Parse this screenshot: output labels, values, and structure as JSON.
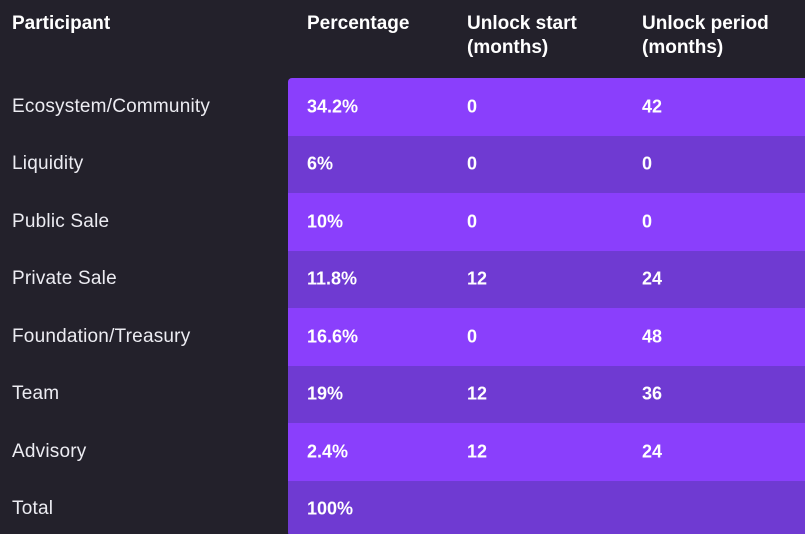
{
  "table": {
    "headers": {
      "participant": "Participant",
      "percentage": "Percentage",
      "unlock_start": "Unlock start\n(months)",
      "unlock_period": "Unlock period\n(months)"
    },
    "rows": [
      {
        "participant": "Ecosystem/Community",
        "percentage": "34.2%",
        "unlock_start": "0",
        "unlock_period": "42"
      },
      {
        "participant": "Liquidity",
        "percentage": "6%",
        "unlock_start": "0",
        "unlock_period": "0"
      },
      {
        "participant": "Public Sale",
        "percentage": "10%",
        "unlock_start": "0",
        "unlock_period": "0"
      },
      {
        "participant": "Private Sale",
        "percentage": "11.8%",
        "unlock_start": "12",
        "unlock_period": "24"
      },
      {
        "participant": "Foundation/Treasury",
        "percentage": "16.6%",
        "unlock_start": "0",
        "unlock_period": "48"
      },
      {
        "participant": "Team",
        "percentage": "19%",
        "unlock_start": "12",
        "unlock_period": "36"
      },
      {
        "participant": "Advisory",
        "percentage": "2.4%",
        "unlock_start": "12",
        "unlock_period": "24"
      },
      {
        "participant": "Total",
        "percentage": "100%",
        "unlock_start": "",
        "unlock_period": ""
      }
    ]
  },
  "colors": {
    "background": "#23212b",
    "row_light": "#8a3ffc",
    "row_dark": "#6f3ad2",
    "text": "#ffffff"
  }
}
